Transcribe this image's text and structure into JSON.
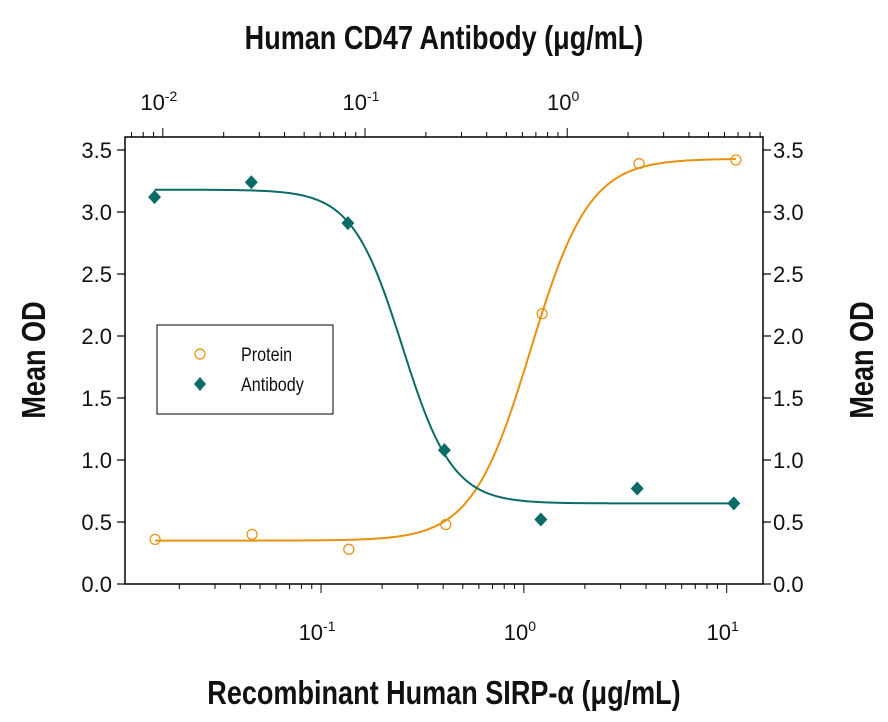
{
  "chart_data": {
    "type": "scatter",
    "top_axis": {
      "label": "Human CD47 Antibody (μg/mL)",
      "scale": "log",
      "range": [
        0.0065,
        9.3
      ],
      "tick_labels": [
        {
          "base": "10",
          "exp": "-2",
          "value": 0.01
        },
        {
          "base": "10",
          "exp": "-1",
          "value": 0.1
        },
        {
          "base": "10",
          "exp": "0",
          "value": 1
        }
      ]
    },
    "bottom_axis": {
      "label": "Recombinant Human SIRP-α (μg/mL)",
      "scale": "log",
      "range": [
        0.0108,
        15.1
      ],
      "tick_labels": [
        {
          "base": "10",
          "exp": "-1",
          "value": 0.1
        },
        {
          "base": "10",
          "exp": "0",
          "value": 1
        },
        {
          "base": "10",
          "exp": "1",
          "value": 10
        }
      ]
    },
    "left_axis": {
      "label": "Mean OD",
      "range": [
        0,
        3.5
      ],
      "tick_labels": [
        "0.0",
        "0.5",
        "1.0",
        "1.5",
        "2.0",
        "2.5",
        "3.0",
        "3.5"
      ]
    },
    "right_axis": {
      "label": "Mean OD",
      "range": [
        0,
        3.5
      ],
      "tick_labels": [
        "0.0",
        "0.5",
        "1.0",
        "1.5",
        "2.0",
        "2.5",
        "3.0",
        "3.5"
      ]
    },
    "legend": {
      "placement": "center-left"
    },
    "series": [
      {
        "name": "Protein",
        "axis": "bottom",
        "marker": "open-circle",
        "color": "#E8900F",
        "x": [
          0.0152,
          0.0457,
          0.137,
          0.412,
          1.23,
          3.7,
          11.1
        ],
        "y": [
          0.36,
          0.4,
          0.28,
          0.48,
          2.18,
          3.39,
          3.42
        ],
        "curve": {
          "type": "4PL",
          "bottom": 0.35,
          "top": 3.43,
          "ec50": 1.08,
          "hill": 3.0
        }
      },
      {
        "name": "Antibody",
        "axis": "top",
        "marker": "filled-diamond",
        "color": "#0B6B66",
        "x": [
          0.0091,
          0.0274,
          0.0823,
          0.247,
          0.741,
          2.22,
          6.67
        ],
        "y": [
          3.12,
          3.24,
          2.91,
          1.08,
          0.52,
          0.77,
          0.65
        ],
        "curve": {
          "type": "4PL",
          "bottom": 0.65,
          "top": 3.18,
          "ec50": 0.153,
          "hill": -3.5
        }
      }
    ]
  }
}
